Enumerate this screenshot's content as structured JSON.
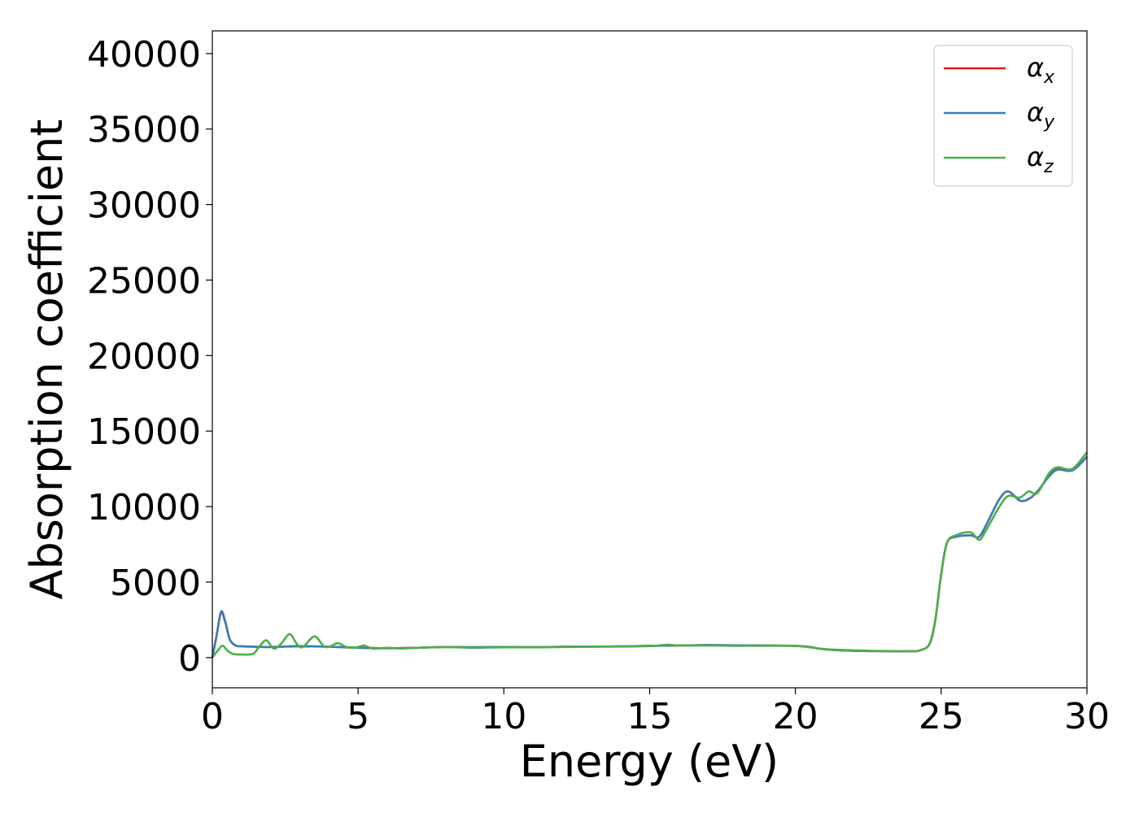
{
  "chart_data": {
    "type": "line",
    "title": "",
    "xlabel": "Energy (eV)",
    "ylabel": "Absorption coefficient",
    "xlim": [
      0,
      30
    ],
    "ylim": [
      -2000,
      41500
    ],
    "xticks": [
      0,
      5,
      10,
      15,
      20,
      25,
      30
    ],
    "yticks": [
      0,
      5000,
      10000,
      15000,
      20000,
      25000,
      30000,
      35000,
      40000
    ],
    "grid": false,
    "legend_position": "top-right",
    "series": [
      {
        "name": "α_x",
        "legend_base": "α",
        "legend_sub": "x",
        "color": "#e41a1c",
        "x": [
          0,
          0.15,
          0.3,
          0.45,
          0.6,
          0.8,
          1.0,
          1.5,
          2,
          3,
          4,
          5,
          6,
          7,
          8,
          9,
          10,
          11,
          12,
          13,
          14,
          15,
          16,
          17,
          18,
          19,
          20,
          20.5,
          21,
          22,
          23,
          24,
          24.3,
          24.6,
          24.8,
          25.0,
          25.2,
          25.5,
          26.0,
          26.3,
          26.6,
          27.0,
          27.3,
          27.7,
          28.0,
          28.3,
          28.7,
          29.0,
          29.5,
          30
        ],
        "values": [
          0,
          1500,
          3000,
          2300,
          1200,
          800,
          750,
          720,
          700,
          750,
          720,
          650,
          620,
          650,
          700,
          680,
          700,
          690,
          720,
          730,
          740,
          780,
          800,
          820,
          810,
          800,
          780,
          700,
          550,
          450,
          430,
          420,
          500,
          900,
          2500,
          5500,
          7600,
          8000,
          8100,
          8000,
          9000,
          10500,
          11000,
          10400,
          10500,
          11000,
          12000,
          12500,
          12400,
          13300
        ]
      },
      {
        "name": "α_y",
        "legend_base": "α",
        "legend_sub": "y",
        "color": "#377eb8",
        "x": [
          0,
          0.15,
          0.3,
          0.45,
          0.6,
          0.8,
          1.0,
          1.5,
          2,
          3,
          4,
          5,
          6,
          7,
          8,
          9,
          10,
          11,
          12,
          13,
          14,
          15,
          16,
          17,
          18,
          19,
          20,
          20.5,
          21,
          22,
          23,
          24,
          24.3,
          24.6,
          24.8,
          25.0,
          25.2,
          25.5,
          26.0,
          26.3,
          26.6,
          27.0,
          27.3,
          27.7,
          28.0,
          28.3,
          28.7,
          29.0,
          29.5,
          30
        ],
        "values": [
          0,
          1500,
          3050,
          2350,
          1200,
          800,
          750,
          720,
          700,
          760,
          720,
          660,
          620,
          650,
          700,
          690,
          700,
          690,
          720,
          730,
          740,
          780,
          800,
          830,
          810,
          800,
          780,
          700,
          550,
          450,
          430,
          420,
          500,
          900,
          2500,
          5500,
          7600,
          8000,
          8100,
          8000,
          9000,
          10500,
          11000,
          10400,
          10500,
          11000,
          12000,
          12450,
          12400,
          13300
        ]
      },
      {
        "name": "α_z",
        "legend_base": "α",
        "legend_sub": "z",
        "color": "#4daf4a",
        "x": [
          0,
          0.2,
          0.35,
          0.5,
          0.7,
          1.0,
          1.4,
          1.6,
          1.85,
          2.1,
          2.35,
          2.65,
          2.9,
          3.1,
          3.5,
          3.8,
          4.0,
          4.3,
          4.6,
          4.9,
          5.2,
          5.5,
          6.0,
          6.5,
          7,
          8,
          9,
          10,
          11,
          12,
          13,
          14,
          15,
          15.6,
          16,
          17,
          18,
          19,
          20,
          20.5,
          21,
          22,
          23,
          24,
          24.3,
          24.6,
          24.8,
          25.0,
          25.2,
          25.5,
          26.0,
          26.3,
          26.5,
          27.0,
          27.3,
          27.7,
          28.0,
          28.3,
          28.7,
          29.0,
          29.5,
          30
        ],
        "values": [
          0,
          500,
          800,
          500,
          250,
          200,
          250,
          700,
          1150,
          600,
          900,
          1550,
          900,
          700,
          1400,
          800,
          700,
          950,
          700,
          650,
          800,
          600,
          650,
          600,
          650,
          700,
          650,
          680,
          680,
          700,
          720,
          730,
          760,
          850,
          800,
          800,
          780,
          780,
          770,
          680,
          560,
          480,
          440,
          430,
          500,
          900,
          2500,
          5500,
          7600,
          8100,
          8300,
          7800,
          8300,
          10000,
          10700,
          10600,
          11000,
          10900,
          12200,
          12600,
          12500,
          13600
        ]
      }
    ]
  }
}
